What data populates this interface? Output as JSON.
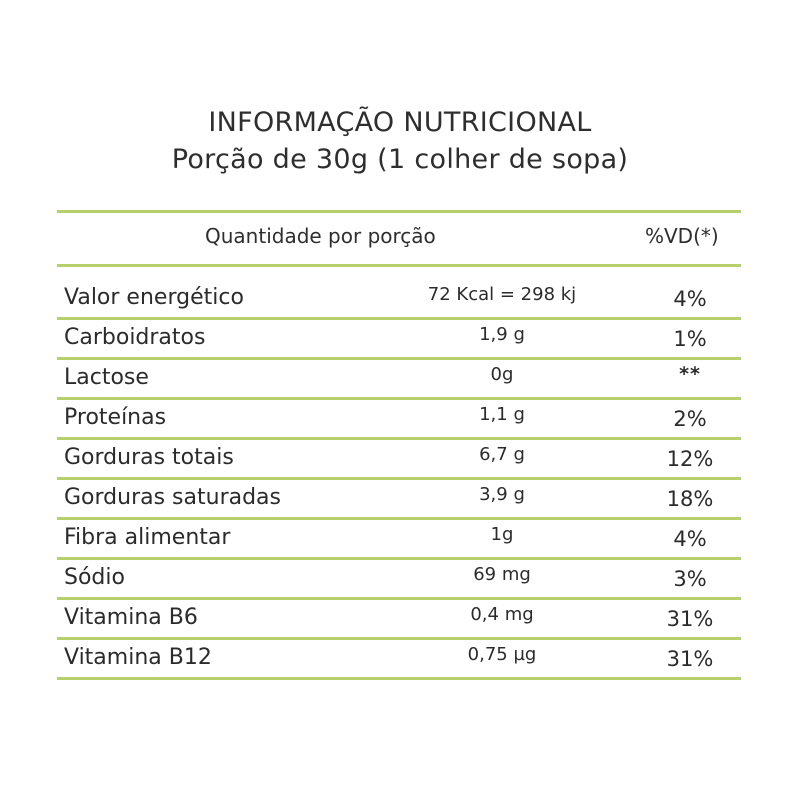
{
  "title": {
    "line1": "INFORMAÇÃO NUTRICIONAL",
    "line2": "Porção de 30g (1 colher de sopa)"
  },
  "header": {
    "quantity": "Quantidade por porção",
    "vd": "%VD(*)"
  },
  "rows": [
    {
      "label": "Valor energético",
      "amount": "72 Kcal = 298 kj",
      "vd": "4%"
    },
    {
      "label": "Carboidratos",
      "amount": "1,9 g",
      "vd": "1%"
    },
    {
      "label": "Lactose",
      "amount": "0g",
      "vd": "**"
    },
    {
      "label": "Proteínas",
      "amount": "1,1 g",
      "vd": "2%"
    },
    {
      "label": "Gorduras totais",
      "amount": "6,7 g",
      "vd": "12%"
    },
    {
      "label": "Gorduras saturadas",
      "amount": "3,9 g",
      "vd": "18%"
    },
    {
      "label": "Fibra alimentar",
      "amount": "1g",
      "vd": "4%"
    },
    {
      "label": "Sódio",
      "amount": "69 mg",
      "vd": "3%"
    },
    {
      "label": "Vitamina B6",
      "amount": "0,4 mg",
      "vd": "31%"
    },
    {
      "label": "Vitamina B12",
      "amount": "0,75 µg",
      "vd": "31%"
    }
  ],
  "colors": {
    "rule": "#b8cf6e",
    "text": "#2b2b2b"
  }
}
